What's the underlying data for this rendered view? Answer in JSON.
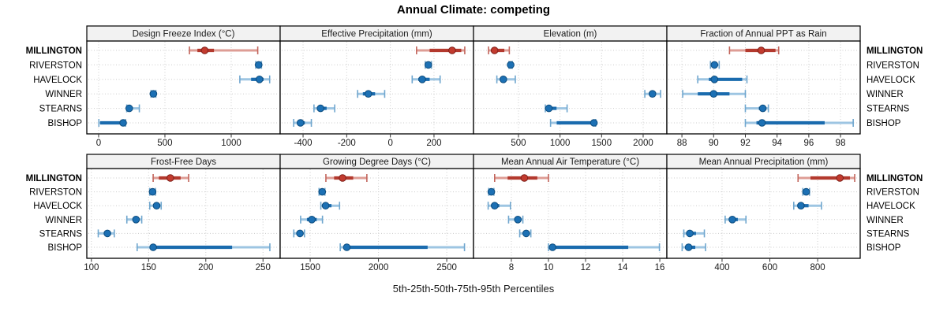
{
  "colors": {
    "red_dark": "#B3392E",
    "red_light": "#DE9D95",
    "red_cap": "#C2655C",
    "red_dot": "#C23B2F",
    "red_dot_edge": "#7F1F18",
    "blue_dark": "#1A6BAE",
    "blue_light": "#9DC5E2",
    "blue_cap": "#6FA6CE",
    "blue_dot": "#1C70B4",
    "blue_dot_edge": "#0C4C7E",
    "strip_bg": "#F2F2F2",
    "grid": "#CCCCCC",
    "border": "#000000"
  },
  "chart_data": {
    "type": "scatter",
    "variant": "trellis-percentile-dotplot",
    "title": "Annual Climate: competing",
    "caption": "5th-25th-50th-75th-95th Percentiles",
    "percentile_labels": [
      "5th",
      "25th",
      "50th",
      "75th",
      "95th"
    ],
    "categories": [
      "MILLINGTON",
      "RIVERSTON",
      "HAVELOCK",
      "WINNER",
      "STEARNS",
      "BISHOP"
    ],
    "highlight_category": "MILLINGTON",
    "layout": {
      "rows": 2,
      "cols": 4,
      "grid": "dotted",
      "station_labels_left": true,
      "station_labels_right": true,
      "legend": "none"
    },
    "panels": [
      {
        "title": "Design Freeze Index (°C)",
        "row": 0,
        "col": 0,
        "ticks": [
          0,
          500,
          1000
        ],
        "range": [
          -89,
          1369
        ],
        "series": [
          [
            685,
            745,
            800,
            870,
            1200
          ],
          [
            1185,
            1197,
            1207,
            1217,
            1228
          ],
          [
            1065,
            1150,
            1213,
            1244,
            1290
          ],
          [
            395,
            405,
            413,
            422,
            432
          ],
          [
            212,
            222,
            231,
            252,
            307
          ],
          [
            2,
            12,
            185,
            193,
            203
          ]
        ]
      },
      {
        "title": "Effective Precipitation (mm)",
        "row": 0,
        "col": 1,
        "ticks": [
          -400,
          -200,
          0,
          200
        ],
        "range": [
          -505,
          381
        ],
        "series": [
          [
            120,
            180,
            283,
            325,
            341
          ],
          [
            160,
            168,
            174,
            181,
            188
          ],
          [
            100,
            128,
            146,
            180,
            228
          ],
          [
            -150,
            -126,
            -101,
            -70,
            -26
          ],
          [
            -350,
            -332,
            -320,
            -292,
            -255
          ],
          [
            -443,
            -426,
            -412,
            -392,
            -362
          ]
        ]
      },
      {
        "title": "Elevation (m)",
        "row": 0,
        "col": 2,
        "ticks": [
          500,
          1000,
          1500,
          2000
        ],
        "range": [
          -41,
          2285
        ],
        "series": [
          [
            140,
            180,
            212,
            330,
            390
          ],
          [
            385,
            397,
            406,
            414,
            426
          ],
          [
            240,
            295,
            318,
            360,
            462
          ],
          [
            2020,
            2075,
            2112,
            2152,
            2210
          ],
          [
            823,
            848,
            866,
            958,
            1085
          ],
          [
            886,
            960,
            1408,
            1419,
            1429
          ]
        ]
      },
      {
        "title": "Fraction of Annual PPT as Rain",
        "row": 0,
        "col": 3,
        "ticks": [
          88,
          90,
          92,
          94,
          96,
          98
        ],
        "range": [
          87.05,
          99.24
        ],
        "series": [
          [
            91.0,
            92.0,
            93.0,
            93.9,
            94.1
          ],
          [
            89.8,
            89.95,
            90.05,
            90.2,
            90.35
          ],
          [
            89.0,
            89.7,
            90.05,
            91.8,
            92.1
          ],
          [
            88.05,
            89.0,
            90.0,
            91.0,
            92.0
          ],
          [
            92.0,
            92.85,
            93.1,
            93.3,
            93.45
          ],
          [
            92.0,
            92.7,
            93.05,
            97.0,
            98.8
          ]
        ]
      },
      {
        "title": "Frost-Free Days",
        "row": 1,
        "col": 0,
        "ticks": [
          100,
          150,
          200,
          250
        ],
        "range": [
          96,
          265
        ],
        "series": [
          [
            154,
            159,
            169,
            178,
            185
          ],
          [
            151,
            152.5,
            153.5,
            155,
            156
          ],
          [
            151,
            154,
            157,
            159,
            161
          ],
          [
            131,
            136,
            139,
            142,
            144
          ],
          [
            106,
            111,
            114,
            117,
            120
          ],
          [
            140,
            151,
            154,
            223,
            256
          ]
        ]
      },
      {
        "title": "Growing Degree Days (°C)",
        "row": 1,
        "col": 1,
        "ticks": [
          1500,
          2000,
          2500
        ],
        "range": [
          1280,
          2696
        ],
        "series": [
          [
            1615,
            1675,
            1737,
            1815,
            1915
          ],
          [
            1565,
            1578,
            1588,
            1598,
            1608
          ],
          [
            1578,
            1597,
            1613,
            1656,
            1715
          ],
          [
            1430,
            1476,
            1512,
            1548,
            1590
          ],
          [
            1380,
            1406,
            1425,
            1442,
            1458
          ],
          [
            1720,
            1748,
            1768,
            2360,
            2630
          ]
        ]
      },
      {
        "title": "Mean Annual Air Temperature (°C)",
        "row": 1,
        "col": 2,
        "ticks": [
          8,
          10,
          12,
          14,
          16
        ],
        "range": [
          5.96,
          16.38
        ],
        "series": [
          [
            7.1,
            7.8,
            8.7,
            9.4,
            10.0
          ],
          [
            6.78,
            6.86,
            6.92,
            6.98,
            7.06
          ],
          [
            6.75,
            6.95,
            7.1,
            7.35,
            7.95
          ],
          [
            7.85,
            8.2,
            8.35,
            8.5,
            8.62
          ],
          [
            8.45,
            8.65,
            8.8,
            8.92,
            9.05
          ],
          [
            10.0,
            10.12,
            10.22,
            14.3,
            15.98
          ]
        ]
      },
      {
        "title": "Mean Annual Precipitation (mm)",
        "row": 1,
        "col": 3,
        "ticks": [
          400,
          600,
          800
        ],
        "range": [
          169,
          978
        ],
        "series": [
          [
            718,
            770,
            893,
            935,
            955
          ],
          [
            738,
            746,
            752,
            759,
            766
          ],
          [
            700,
            716,
            730,
            762,
            816
          ],
          [
            413,
            430,
            443,
            466,
            500
          ],
          [
            240,
            253,
            265,
            291,
            326
          ],
          [
            233,
            248,
            260,
            288,
            331
          ]
        ]
      }
    ]
  }
}
